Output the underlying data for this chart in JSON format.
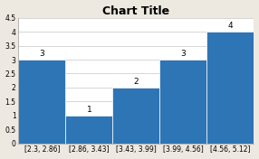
{
  "title": "Chart Title",
  "categories": [
    "[2.3, 2.86]",
    "[2.86, 3.43]",
    "[3.43, 3.99]",
    "[3.99, 4.56]",
    "[4.56, 5.12]"
  ],
  "values": [
    3,
    1,
    2,
    3,
    4
  ],
  "bar_color": "#2E75B6",
  "ylim": [
    0,
    4.5
  ],
  "yticks": [
    0,
    0.5,
    1.0,
    1.5,
    2.0,
    2.5,
    3.0,
    3.5,
    4.0,
    4.5
  ],
  "title_fontsize": 9,
  "tick_fontsize": 5.5,
  "bar_label_fontsize": 6.5,
  "background_color": "#ede8e0",
  "plot_bg_color": "#ffffff",
  "grid_color": "#d0d0d0",
  "spine_color": "#aaaaaa"
}
